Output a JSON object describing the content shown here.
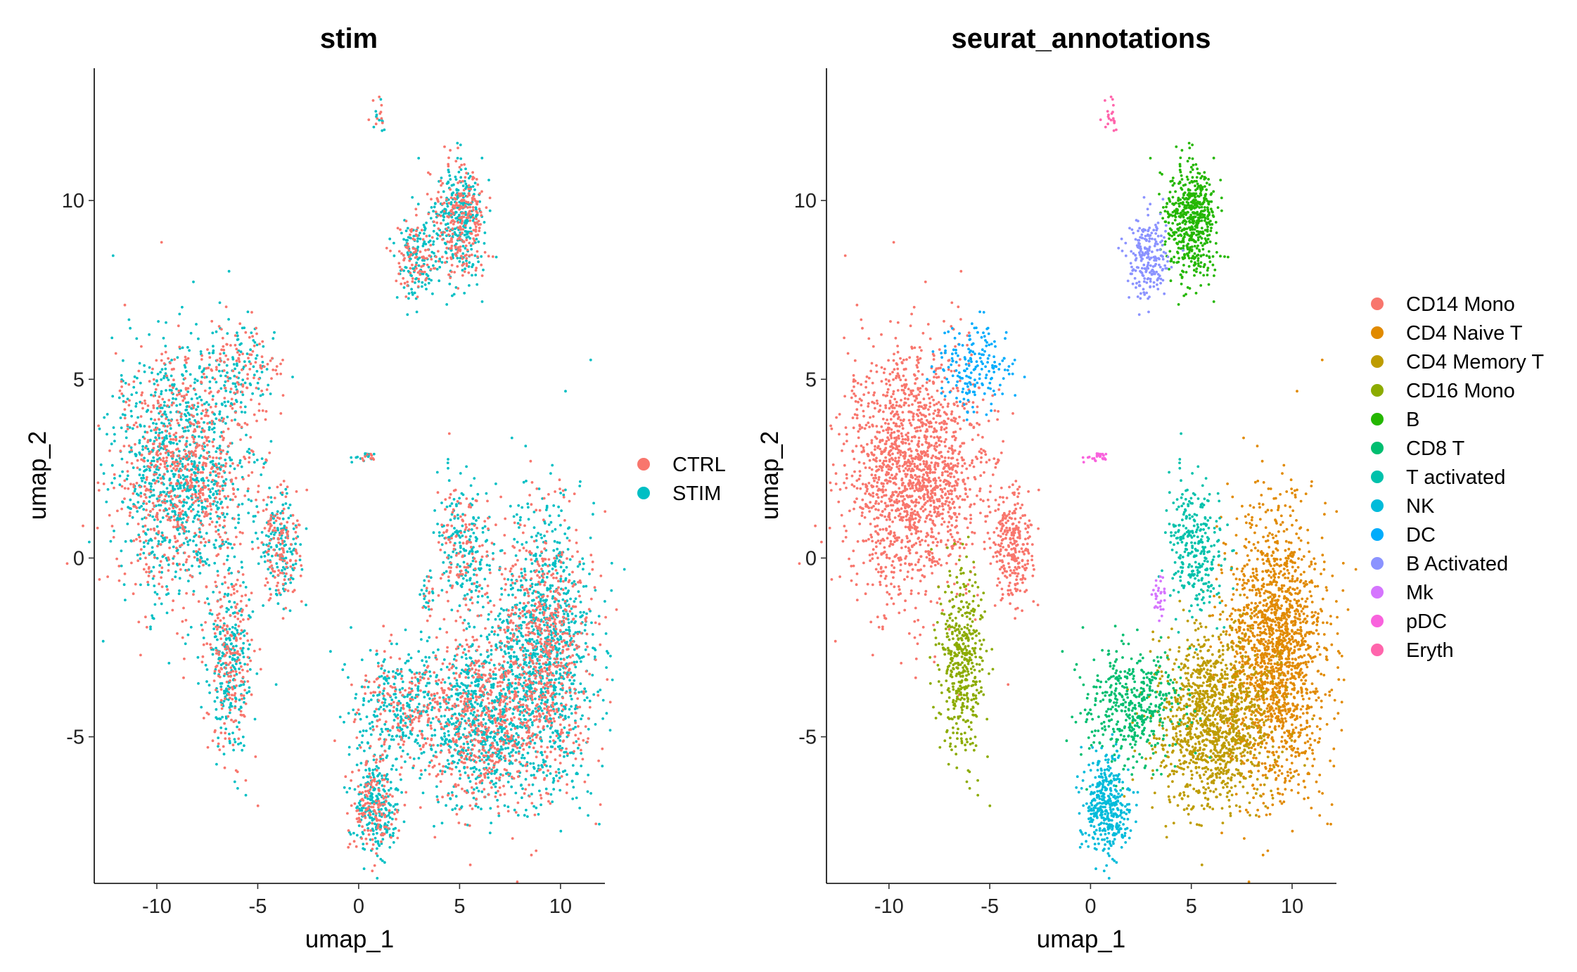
{
  "chart_data": [
    {
      "type": "scatter",
      "title": "stim",
      "xlabel": "umap_1",
      "ylabel": "umap_2",
      "xlim": [
        -13.1,
        12.2
      ],
      "ylim": [
        -9.1,
        13.7
      ],
      "xticks": [
        "-10",
        "-5",
        "0",
        "5",
        "10"
      ],
      "yticks": [
        "-5",
        "0",
        "5",
        "10"
      ],
      "legend": {
        "position": "right",
        "entries": [
          {
            "label": "CTRL",
            "color": "#F8766D"
          },
          {
            "label": "STIM",
            "color": "#00BFC4"
          }
        ]
      },
      "series": [
        {
          "name": "CTRL",
          "color": "#F8766D",
          "share": 0.42
        },
        {
          "name": "STIM",
          "color": "#00BFC4",
          "share": 0.58
        }
      ],
      "clusters": [
        {
          "cells": "CD14 Mono",
          "center": [
            -8.8,
            2.4
          ],
          "spread": [
            1.7,
            1.7
          ],
          "n": 1700
        },
        {
          "cells": "CD16 Mono",
          "center": [
            -6.4,
            -3.0
          ],
          "spread": [
            0.55,
            1.3
          ],
          "n": 450
        },
        {
          "cells": "DC",
          "center": [
            -5.8,
            5.4
          ],
          "spread": [
            0.9,
            0.6
          ],
          "n": 180
        },
        {
          "cells": "CD14 Mono (small)",
          "center": [
            -3.8,
            0.3
          ],
          "spread": [
            0.5,
            0.8
          ],
          "n": 260
        },
        {
          "cells": "CD4 Naive T",
          "center": [
            9.2,
            -2.6
          ],
          "spread": [
            1.2,
            1.9
          ],
          "n": 1700
        },
        {
          "cells": "CD4 Memory T",
          "center": [
            6.0,
            -4.6
          ],
          "spread": [
            1.4,
            1.2
          ],
          "n": 1200
        },
        {
          "cells": "T activated",
          "center": [
            5.2,
            0.3
          ],
          "spread": [
            0.7,
            1.0
          ],
          "n": 300
        },
        {
          "cells": "CD8 T",
          "center": [
            2.1,
            -4.2
          ],
          "spread": [
            1.2,
            0.8
          ],
          "n": 450
        },
        {
          "cells": "NK",
          "center": [
            0.8,
            -6.9
          ],
          "spread": [
            0.6,
            0.7
          ],
          "n": 380
        },
        {
          "cells": "B",
          "center": [
            5.0,
            9.5
          ],
          "spread": [
            0.6,
            0.8
          ],
          "n": 550
        },
        {
          "cells": "B Activated",
          "center": [
            2.8,
            8.4
          ],
          "spread": [
            0.5,
            0.6
          ],
          "n": 220
        },
        {
          "cells": "Mk",
          "center": [
            3.4,
            -1.1
          ],
          "spread": [
            0.15,
            0.3
          ],
          "n": 30
        },
        {
          "cells": "pDC",
          "center": [
            0.4,
            2.8
          ],
          "spread": [
            0.3,
            0.1
          ],
          "n": 25
        },
        {
          "cells": "Eryth",
          "center": [
            1.0,
            12.3
          ],
          "spread": [
            0.25,
            0.25
          ],
          "n": 20
        }
      ]
    },
    {
      "type": "scatter",
      "title": "seurat_annotations",
      "xlabel": "umap_1",
      "ylabel": "umap_2",
      "xlim": [
        -13.1,
        12.2
      ],
      "ylim": [
        -9.1,
        13.7
      ],
      "xticks": [
        "-10",
        "-5",
        "0",
        "5",
        "10"
      ],
      "yticks": [
        "-5",
        "0",
        "5",
        "10"
      ],
      "legend": {
        "position": "right",
        "entries": [
          {
            "label": "CD14 Mono",
            "color": "#F8766D"
          },
          {
            "label": "CD4 Naive T",
            "color": "#E18A00"
          },
          {
            "label": "CD4 Memory T",
            "color": "#BE9C00"
          },
          {
            "label": "CD16 Mono",
            "color": "#8CAB00"
          },
          {
            "label": "B",
            "color": "#24B700"
          },
          {
            "label": "CD8 T",
            "color": "#00BE70"
          },
          {
            "label": "T activated",
            "color": "#00C1AB"
          },
          {
            "label": "NK",
            "color": "#00BBDA"
          },
          {
            "label": "DC",
            "color": "#00ACFC"
          },
          {
            "label": "B Activated",
            "color": "#8B93FF"
          },
          {
            "label": "Mk",
            "color": "#D575FE"
          },
          {
            "label": "pDC",
            "color": "#F962DD"
          },
          {
            "label": "Eryth",
            "color": "#FF65AC"
          }
        ]
      }
    }
  ]
}
